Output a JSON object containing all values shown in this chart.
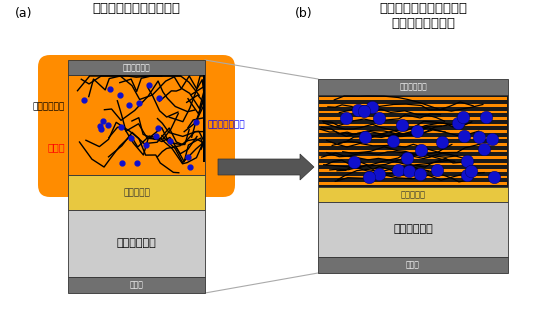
{
  "bg_color": "#FFFFFF",
  "title_a": "従来のリチウム空気電池",
  "title_b": "本研究における実用的な\nリチウム空気電池",
  "label_a": "(a)",
  "label_b": "(b)",
  "collector_text": "集電体＋流路",
  "separator_text": "セパレータ",
  "lithium_text": "リチウム負極",
  "collector_bottom_text": "集電体",
  "carbon_label": "カーボン正極",
  "electrolyte_label": "電解液",
  "peroxide_label": "過酸化リチウム",
  "orange_color": "#FF8C00",
  "blue_dot_color": "#1010CC",
  "gray_dark": "#707070",
  "gray_light": "#CCCCCC",
  "yellow_sep": "#E8C840",
  "white_bg": "#FFFFFF",
  "line_color": "#AAAAAA",
  "arrow_color": "#555555"
}
